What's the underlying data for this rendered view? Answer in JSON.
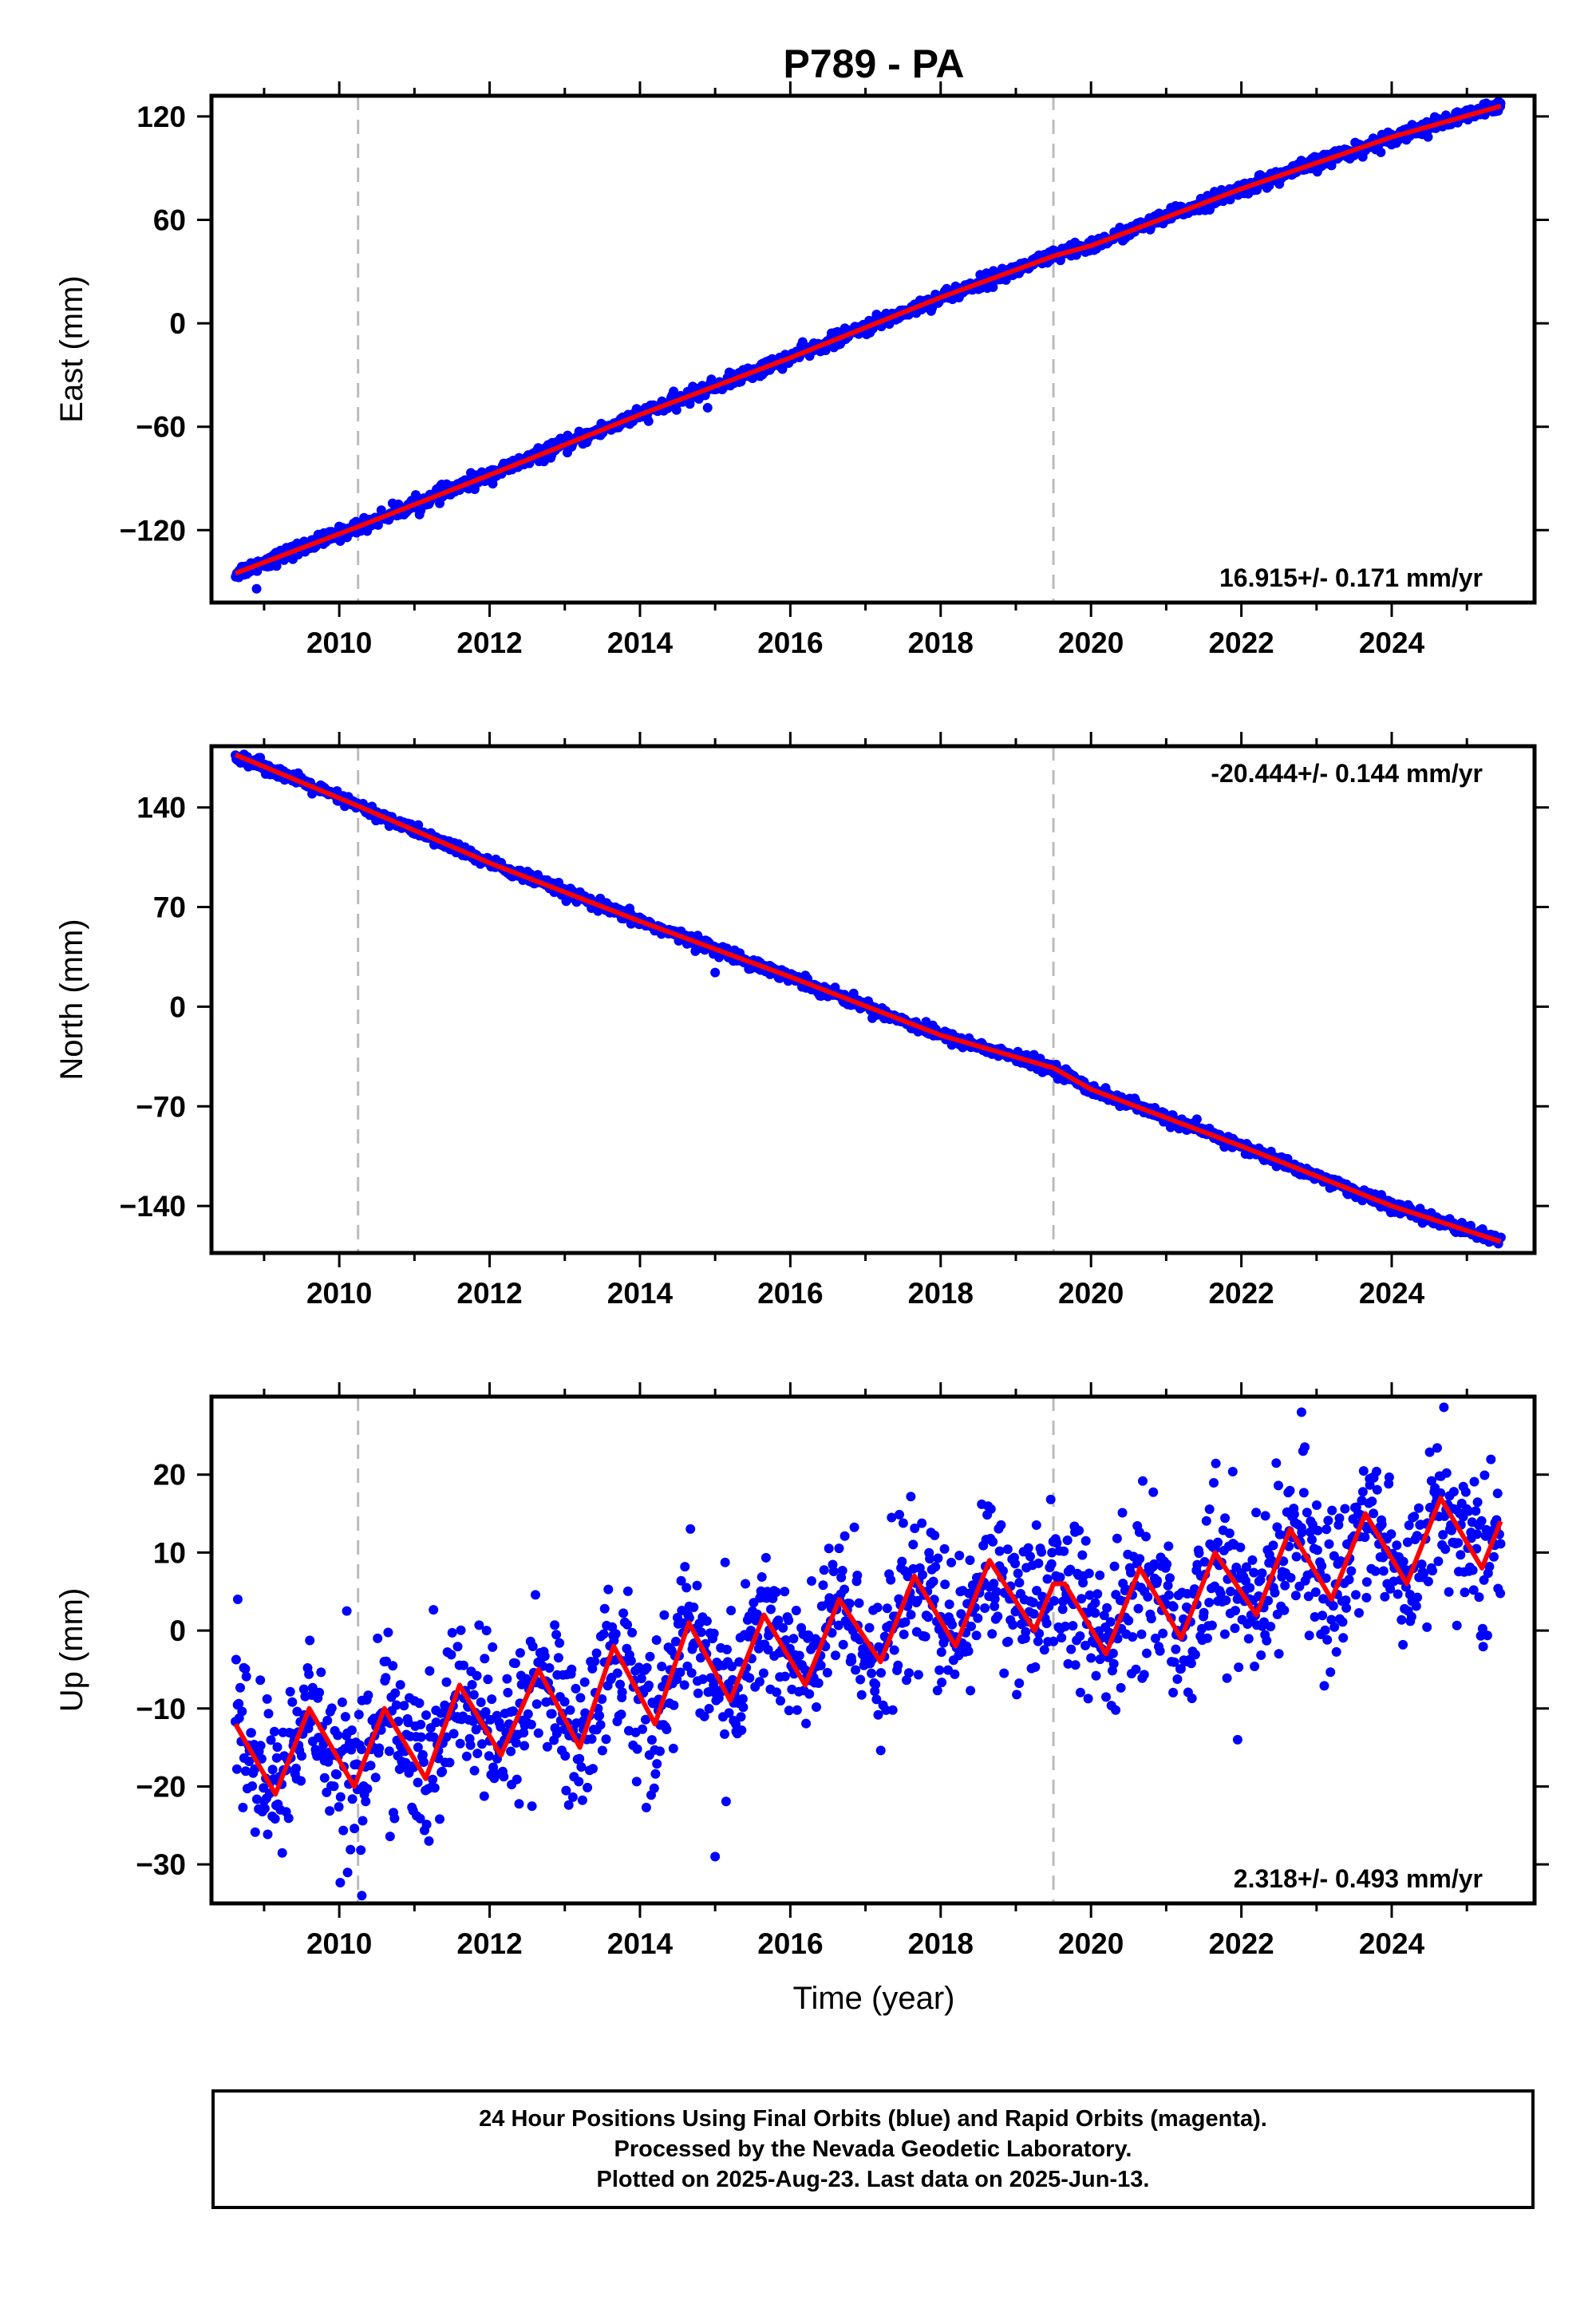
{
  "title": "P789 - PA",
  "colors": {
    "final_orbits": "#0000ff",
    "model_fit": "#ff0000",
    "event_line": "#bbbbbb",
    "frame": "#000000"
  },
  "chart_data": [
    {
      "type": "scatter",
      "component": "east",
      "ylabel": "East (mm)",
      "xlabel": "",
      "xlim": [
        2008.3,
        2025.9
      ],
      "ylim": [
        -162,
        132
      ],
      "xticks": [
        2010,
        2012,
        2014,
        2016,
        2018,
        2020,
        2022,
        2024
      ],
      "yticks": [
        -120,
        -60,
        0,
        60,
        120
      ],
      "event_lines_x": [
        2010.25,
        2019.5
      ],
      "rate_label": "16.915+/- 0.171 mm/yr",
      "rate_label_position": "bottom-right",
      "series": [
        {
          "role": "daily positions",
          "style": "points",
          "x_start": 2008.62,
          "x_end": 2025.45,
          "y_start": -146,
          "y_end": 126,
          "seasonal_amplitude": 2,
          "scatter": 2
        },
        {
          "role": "model fit",
          "style": "line",
          "x": [
            2008.62,
            2010.25,
            2012,
            2014,
            2016,
            2018,
            2019.5,
            2020,
            2022,
            2024,
            2025.45
          ],
          "y": [
            -145,
            -118,
            -88,
            -53,
            -20,
            15,
            39,
            45,
            78,
            108,
            126
          ]
        }
      ],
      "outliers": [
        {
          "x": 2008.9,
          "y": -154
        },
        {
          "x": 2014.9,
          "y": -49
        }
      ]
    },
    {
      "type": "scatter",
      "component": "north",
      "ylabel": "North (mm)",
      "xlabel": "",
      "xlim": [
        2008.3,
        2025.9
      ],
      "ylim": [
        -173,
        183
      ],
      "xticks": [
        2010,
        2012,
        2014,
        2016,
        2018,
        2020,
        2022,
        2024
      ],
      "yticks": [
        -140,
        -70,
        0,
        70,
        140
      ],
      "event_lines_x": [
        2010.25,
        2019.5
      ],
      "rate_label": "-20.444+/- 0.144 mm/yr",
      "rate_label_position": "top-right",
      "series": [
        {
          "role": "daily positions",
          "style": "points",
          "x_start": 2008.62,
          "x_end": 2025.45,
          "y_start": 177,
          "y_end": -165,
          "seasonal_amplitude": 3,
          "scatter": 2
        },
        {
          "role": "model fit",
          "style": "line",
          "x": [
            2008.62,
            2010.25,
            2012,
            2014,
            2016,
            2018,
            2019.5,
            2020,
            2022,
            2024,
            2025.45
          ],
          "y": [
            177,
            141,
            101,
            60,
            21,
            -20,
            -43,
            -58,
            -98,
            -140,
            -165
          ]
        }
      ],
      "outliers": [
        {
          "x": 2015.0,
          "y": 24
        }
      ]
    },
    {
      "type": "scatter",
      "component": "up",
      "ylabel": "Up (mm)",
      "xlabel": "Time (year)",
      "xlim": [
        2008.3,
        2025.9
      ],
      "ylim": [
        -35,
        30
      ],
      "xticks": [
        2010,
        2012,
        2014,
        2016,
        2018,
        2020,
        2022,
        2024
      ],
      "yticks": [
        -30,
        -20,
        -10,
        0,
        10,
        20
      ],
      "event_lines_x": [
        2010.25,
        2019.5
      ],
      "rate_label": "2.318+/- 0.493 mm/yr",
      "rate_label_position": "bottom-right",
      "series": [
        {
          "role": "daily positions",
          "style": "points",
          "x_start": 2008.62,
          "x_end": 2025.45,
          "y_start": -16,
          "y_end": 10,
          "seasonal_amplitude": 6,
          "scatter": 5
        },
        {
          "role": "model fit",
          "style": "line",
          "x": [
            2008.62,
            2009.15,
            2009.6,
            2010.2,
            2010.6,
            2011.15,
            2011.6,
            2012.15,
            2012.65,
            2013.2,
            2013.65,
            2014.2,
            2014.65,
            2015.2,
            2015.65,
            2016.2,
            2016.65,
            2017.2,
            2017.65,
            2018.2,
            2018.65,
            2019.25,
            2019.5,
            2019.65,
            2020.2,
            2020.65,
            2021.2,
            2021.65,
            2022.2,
            2022.65,
            2023.2,
            2023.65,
            2024.2,
            2024.65,
            2025.2,
            2025.45
          ],
          "y": [
            -12,
            -21,
            -10,
            -20,
            -10,
            -19,
            -7,
            -16,
            -5,
            -15,
            -2,
            -12,
            1,
            -9,
            2,
            -7,
            4,
            -4,
            7,
            -2,
            9,
            0,
            6,
            6,
            -3,
            8,
            -1,
            10,
            2,
            13,
            4,
            15,
            6,
            17,
            8,
            14
          ]
        }
      ],
      "outliers": [
        {
          "x": 2008.65,
          "y": 4
        },
        {
          "x": 2010.1,
          "y": 2.5
        },
        {
          "x": 2010.3,
          "y": -34
        },
        {
          "x": 2015.0,
          "y": -29
        },
        {
          "x": 2021.95,
          "y": -14
        },
        {
          "x": 2022.8,
          "y": 28
        }
      ]
    }
  ],
  "footer": {
    "line1": "24 Hour Positions Using Final Orbits (blue) and Rapid Orbits (magenta).",
    "line2": "Processed by the Nevada Geodetic Laboratory.",
    "line3": "Plotted on 2025-Aug-23. Last data on 2025-Jun-13."
  }
}
